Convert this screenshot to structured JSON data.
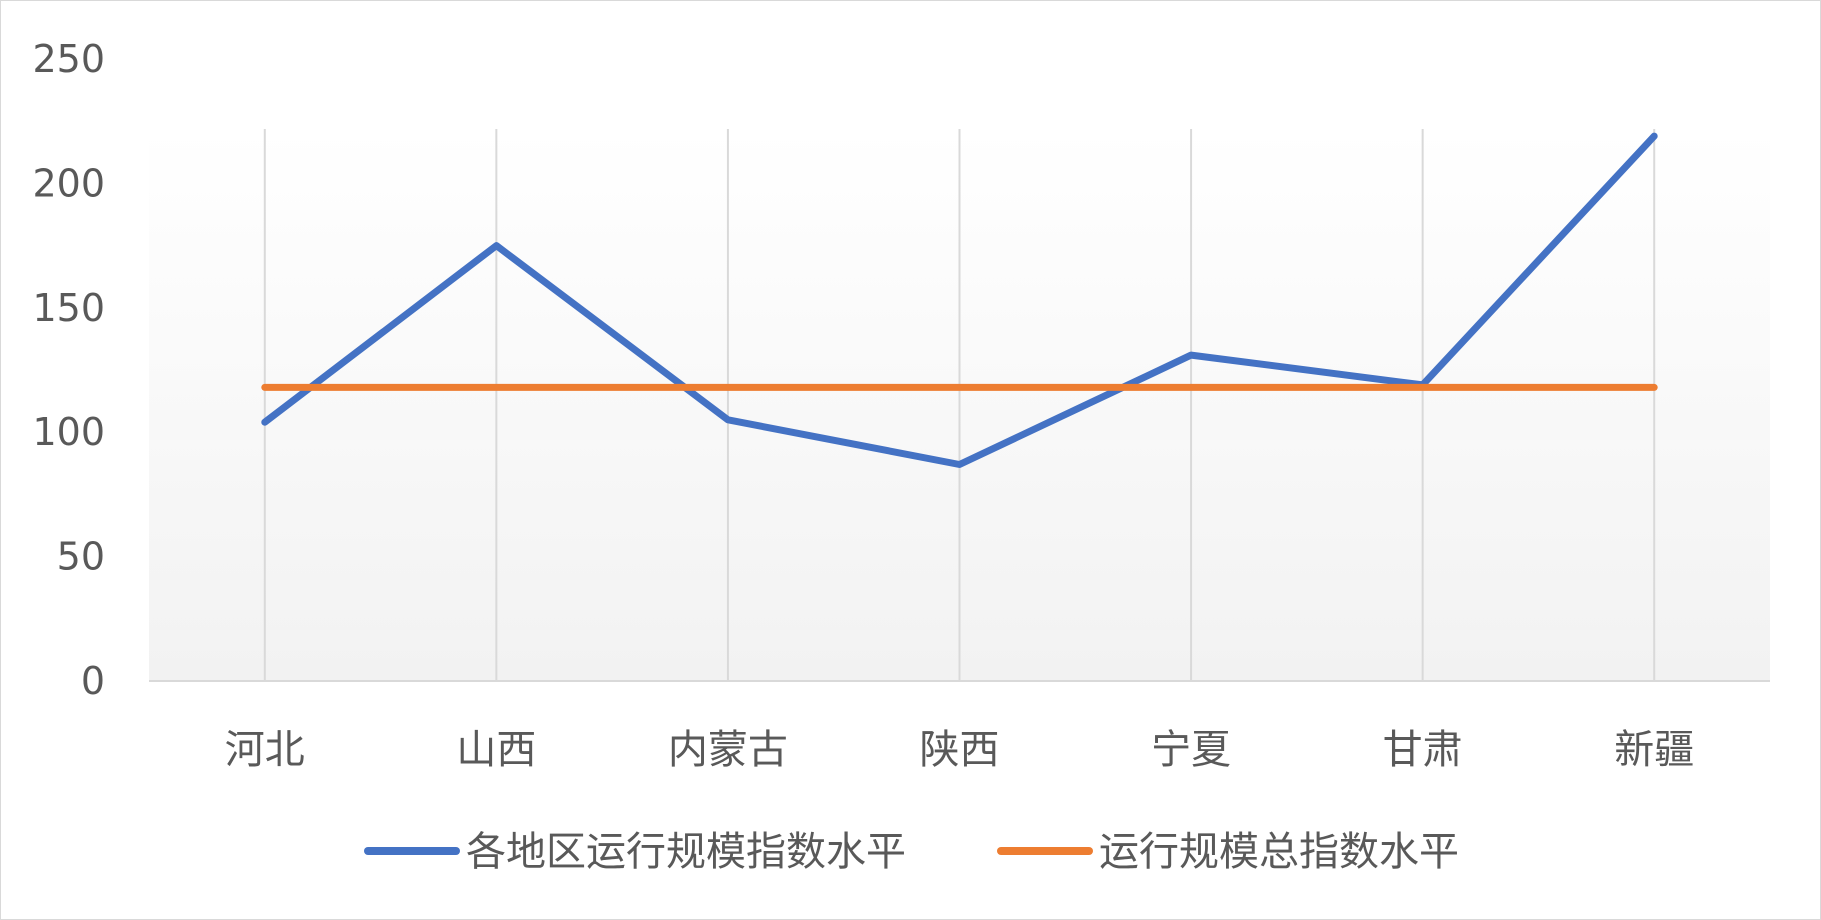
{
  "chart_data": {
    "type": "line",
    "title": "",
    "xlabel": "",
    "ylabel": "",
    "categories": [
      "河北",
      "山西",
      "内蒙古",
      "陕西",
      "宁夏",
      "甘肃",
      "新疆"
    ],
    "series": [
      {
        "name": "各地区运行规模指数水平",
        "color": "#4472C4",
        "values": [
          104,
          175,
          105,
          87,
          131,
          119,
          219
        ]
      },
      {
        "name": "运行规模总指数水平",
        "color": "#ED7D31",
        "values": [
          118,
          118,
          118,
          118,
          118,
          118,
          118
        ]
      }
    ],
    "ylim": [
      0,
      250
    ],
    "yticks": [
      0,
      50,
      100,
      150,
      200,
      250
    ],
    "grid": "vertical",
    "legend": "bottom"
  }
}
